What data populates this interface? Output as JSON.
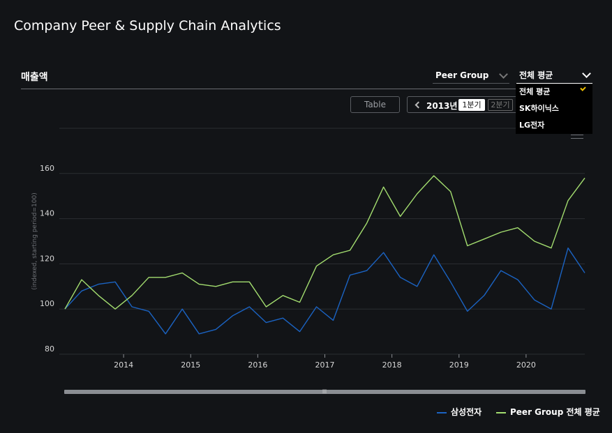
{
  "app_title": "Company Peer & Supply Chain Analytics",
  "section_title": "매출액",
  "controls": {
    "peer_select": "Peer Group",
    "avg_select": "전체 평균",
    "dropdown_options": [
      "전체 평균",
      "SK하이닉스",
      "LG전자"
    ],
    "table_button": "Table",
    "period_year": "2013년",
    "period_q1": "1분기",
    "period_q2": "2분기"
  },
  "colors": {
    "series_1": "#1b63c2",
    "series_2": "#a3dd6f",
    "grid": "#2b2e32",
    "background": "#121417",
    "accent_check": "#f0c000"
  },
  "chart_data": {
    "type": "line",
    "ylabel": "(indexed, starting period=100)",
    "ylim": [
      80,
      180
    ],
    "yticks": [
      80,
      100,
      120,
      140,
      160
    ],
    "xlim": [
      2013.125,
      2020.875
    ],
    "xticks": [
      2014,
      2015,
      2016,
      2017,
      2018,
      2019,
      2020
    ],
    "grid": true,
    "legend_position": "bottom-right",
    "x": [
      2013.125,
      2013.375,
      2013.625,
      2013.875,
      2014.125,
      2014.375,
      2014.625,
      2014.875,
      2015.125,
      2015.375,
      2015.625,
      2015.875,
      2016.125,
      2016.375,
      2016.625,
      2016.875,
      2017.125,
      2017.375,
      2017.625,
      2017.875,
      2018.125,
      2018.375,
      2018.625,
      2018.875,
      2019.125,
      2019.375,
      2019.625,
      2019.875,
      2020.125,
      2020.375,
      2020.625,
      2020.875
    ],
    "series": [
      {
        "name": "삼성전자",
        "values": [
          100,
          108,
          111,
          112,
          101,
          99,
          89,
          100,
          89,
          91,
          97,
          101,
          94,
          96,
          90,
          101,
          95,
          115,
          117,
          125,
          114,
          110,
          124,
          112,
          99,
          106,
          117,
          113,
          104,
          100,
          127,
          116
        ]
      },
      {
        "name": "Peer Group 전체 평균",
        "values": [
          100,
          113,
          106,
          100,
          106,
          114,
          114,
          116,
          111,
          110,
          112,
          112,
          101,
          106,
          103,
          119,
          124,
          126,
          138,
          154,
          141,
          151,
          159,
          152,
          128,
          131,
          134,
          136,
          130,
          127,
          148,
          158
        ]
      }
    ]
  }
}
